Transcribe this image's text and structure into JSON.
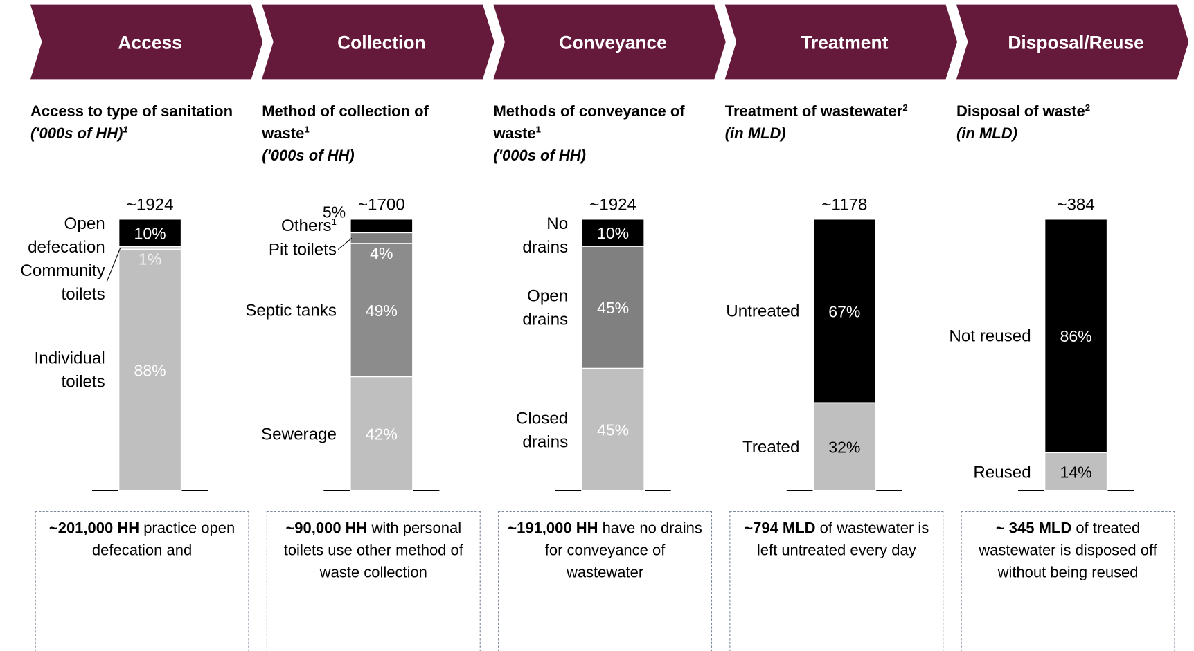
{
  "stages": [
    {
      "name": "Access",
      "heading": [
        "Access to type of sanitation"
      ],
      "subheading": "('000s of HH)",
      "subheading_sup": "1",
      "total": "~1924",
      "segments": [
        {
          "label": [
            "Individual",
            "toilets"
          ],
          "value": 88,
          "value_label": "88%",
          "color": "#bfbfbf",
          "label_color": "#ffffff"
        },
        {
          "label": [
            "Community",
            "toilets"
          ],
          "value": 1,
          "value_label": "1%",
          "color": "#bfbfbf",
          "label_color": "#f2f2f2"
        },
        {
          "label": [
            "Open",
            "defecation"
          ],
          "value": 10,
          "value_label": "10%",
          "color": "#000000",
          "label_color": "#ffffff"
        }
      ],
      "note": {
        "bold": "~201,000 HH",
        "text": " practice open defecation and"
      }
    },
    {
      "name": "Collection",
      "heading": [
        "Method of collection of",
        "waste"
      ],
      "heading_sup": "1",
      "subheading": "('000s of HH)",
      "total": "~1700",
      "segments": [
        {
          "label": [
            "Sewerage"
          ],
          "value": 42,
          "value_label": "42%",
          "color": "#bfbfbf",
          "label_color": "#ffffff"
        },
        {
          "label": [
            "Septic tanks"
          ],
          "value": 49,
          "value_label": "49%",
          "color": "#8c8c8c",
          "label_color": "#ffffff"
        },
        {
          "label": [
            "Pit toilets"
          ],
          "value": 4,
          "value_label": "4%",
          "color": "#7f7f7f",
          "label_color": "#ffffff"
        },
        {
          "label": [
            "Others"
          ],
          "label_sup": "1",
          "value": 5,
          "value_label": "5%",
          "color": "#000000",
          "label_color": "#000000"
        }
      ],
      "note": {
        "bold": "~90,000 HH",
        "text": " with personal toilets use other method of waste collection"
      }
    },
    {
      "name": "Conveyance",
      "heading": [
        "Methods of conveyance of",
        "waste"
      ],
      "heading_sup": "1",
      "subheading": "('000s of HH)",
      "total": "~1924",
      "segments": [
        {
          "label": [
            "Closed",
            "drains"
          ],
          "value": 45,
          "value_label": "45%",
          "color": "#bfbfbf",
          "label_color": "#ffffff"
        },
        {
          "label": [
            "Open",
            "drains"
          ],
          "value": 45,
          "value_label": "45%",
          "color": "#808080",
          "label_color": "#ffffff"
        },
        {
          "label": [
            "No",
            "drains"
          ],
          "value": 10,
          "value_label": "10%",
          "color": "#000000",
          "label_color": "#ffffff"
        }
      ],
      "note": {
        "bold": "~191,000 HH",
        "text": " have no drains for conveyance of wastewater"
      }
    },
    {
      "name": "Treatment",
      "heading": [
        "Treatment of wastewater"
      ],
      "heading_sup": "2",
      "subheading": "(in MLD)",
      "total": "~1178",
      "segments": [
        {
          "label": [
            "Treated"
          ],
          "value": 32,
          "value_label": "32%",
          "color": "#bfbfbf",
          "label_color": "#000000"
        },
        {
          "label": [
            "Untreated"
          ],
          "value": 67,
          "value_label": "67%",
          "color": "#000000",
          "label_color": "#ffffff"
        }
      ],
      "note": {
        "bold": "~794 MLD",
        "text": " of wastewater is left untreated every day"
      }
    },
    {
      "name": "Disposal/Reuse",
      "heading": [
        "Disposal of waste"
      ],
      "heading_sup": "2",
      "subheading": "(in MLD)",
      "total": "~384",
      "segments": [
        {
          "label": [
            "Reused"
          ],
          "value": 14,
          "value_label": "14%",
          "color": "#bfbfbf",
          "label_color": "#000000"
        },
        {
          "label": [
            "Not reused"
          ],
          "value": 86,
          "value_label": "86%",
          "color": "#000000",
          "label_color": "#ffffff"
        }
      ],
      "note": {
        "bold": "~ 345 MLD",
        "text": " of treated wastewater is disposed off without being reused"
      }
    }
  ]
}
